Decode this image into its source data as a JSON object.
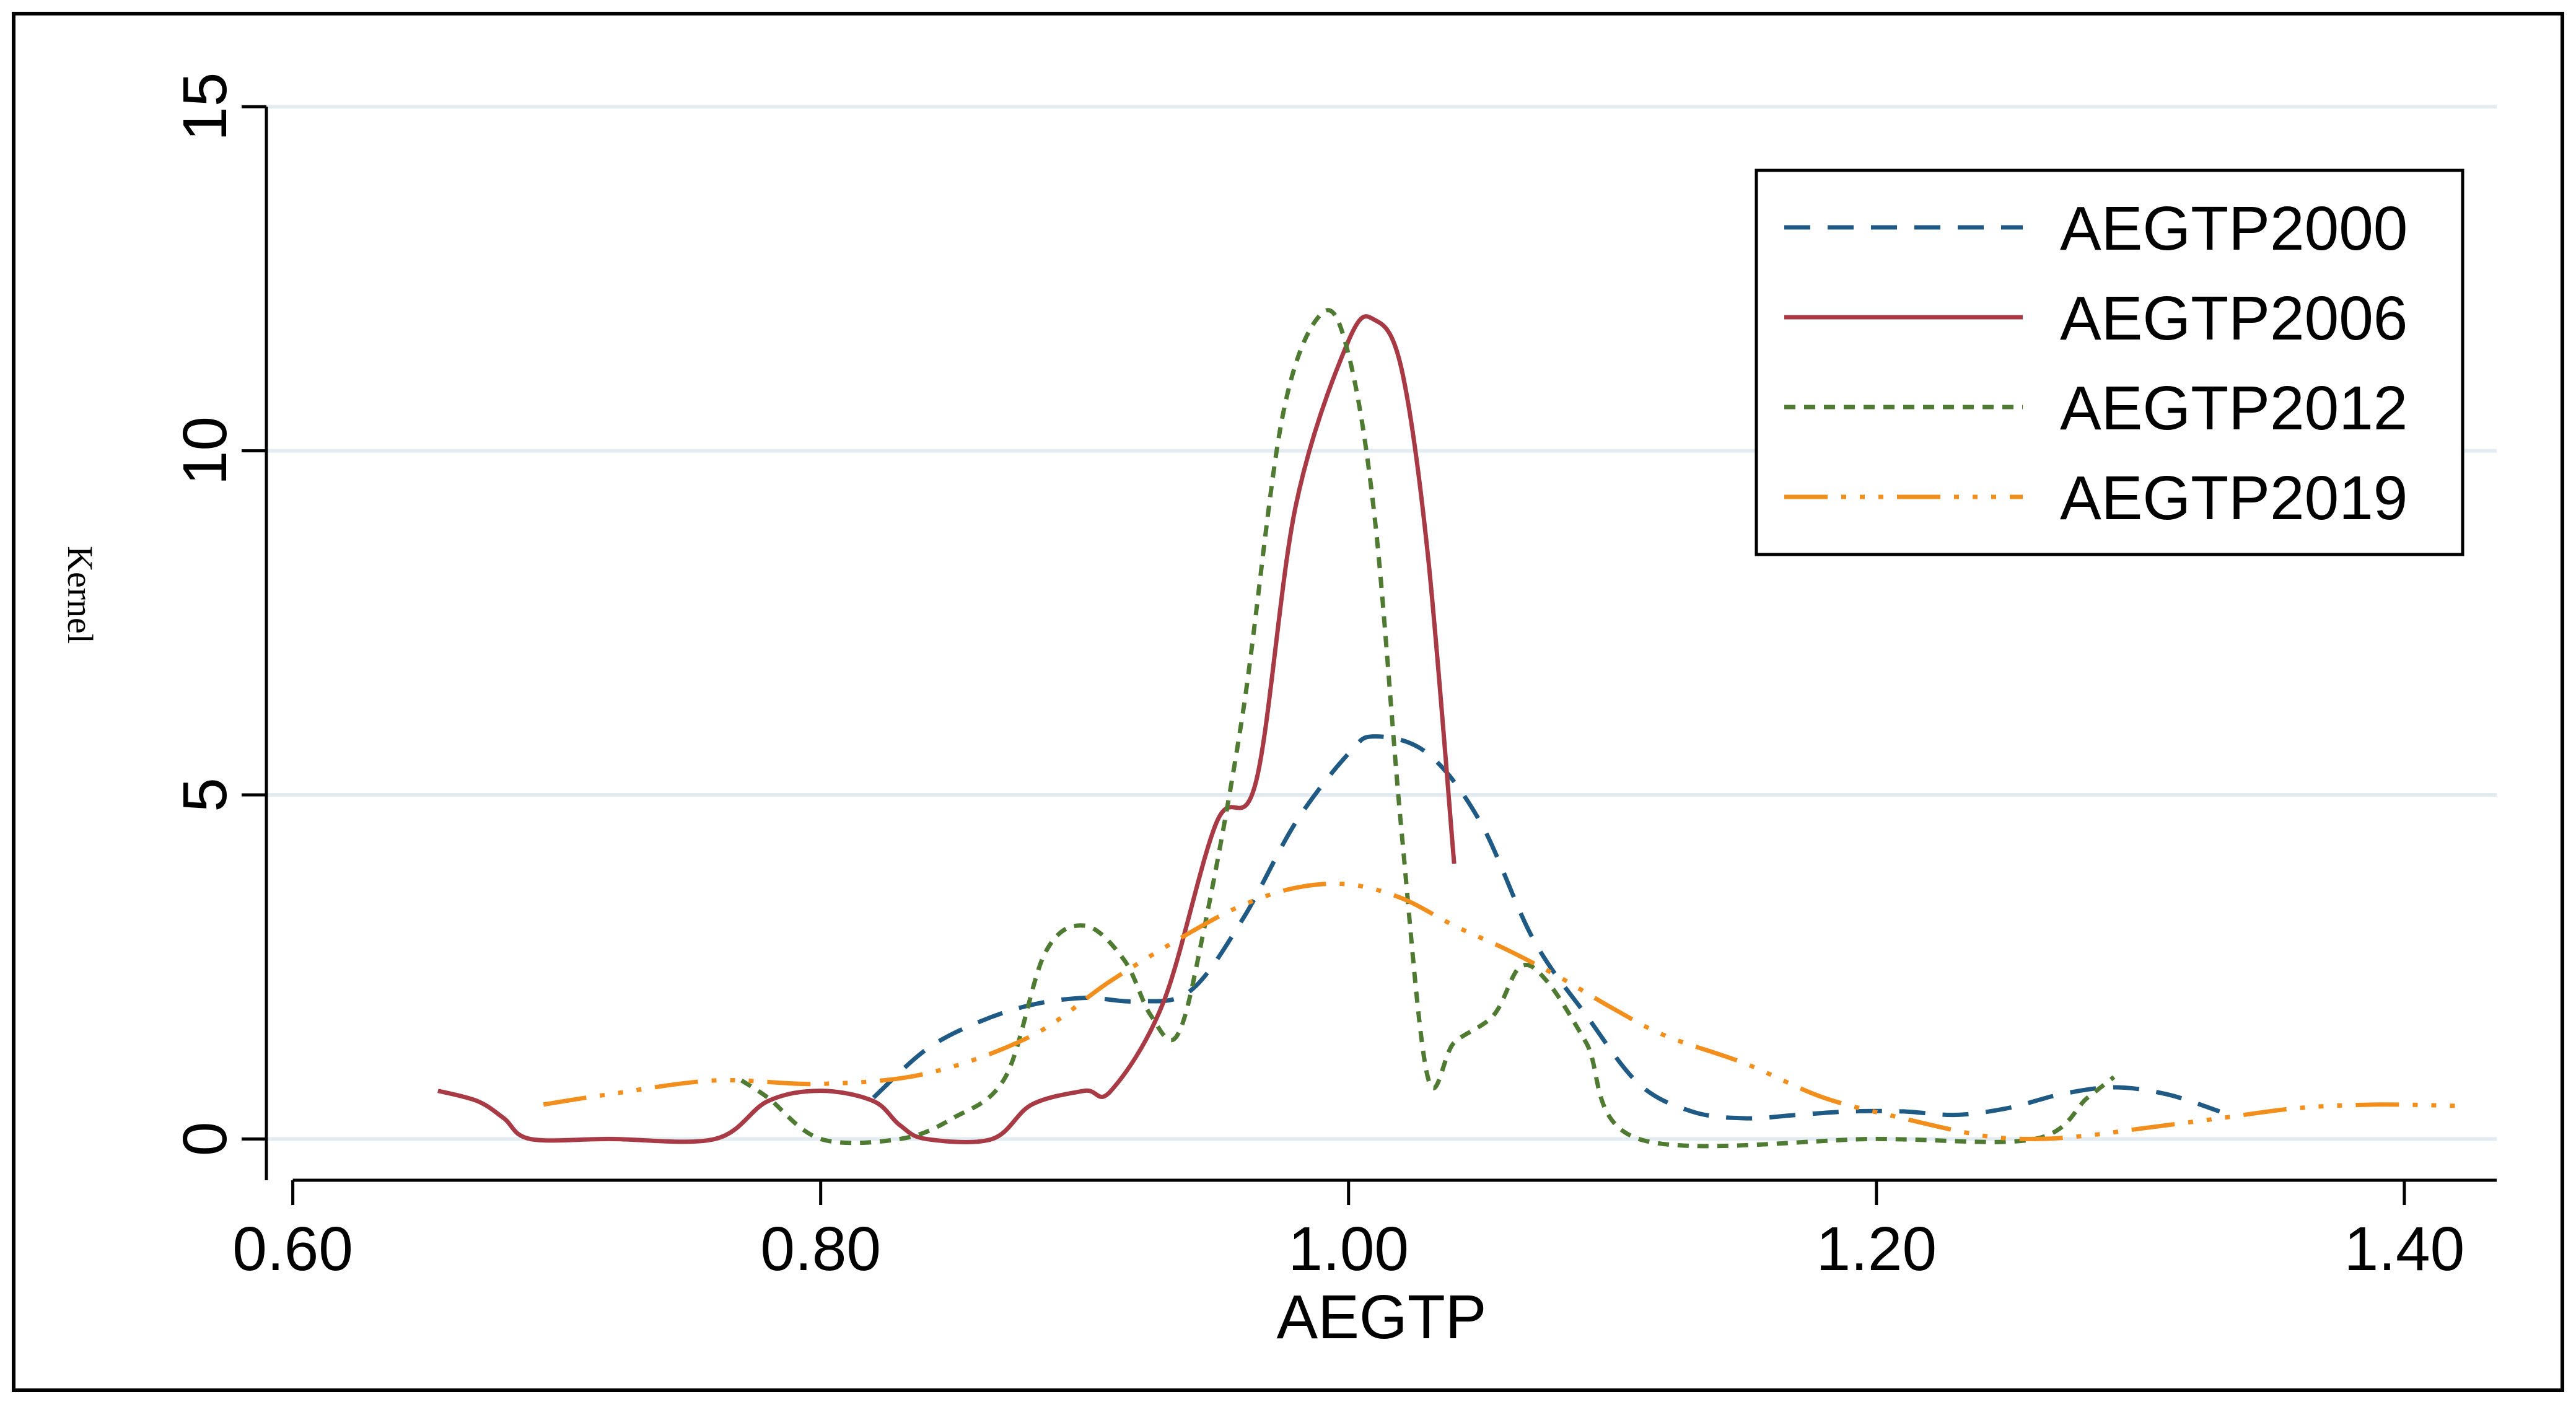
{
  "chart_data": {
    "type": "line",
    "title": "",
    "xlabel": "AEGTP",
    "ylabel": "Kernel",
    "xlim": [
      0.59,
      1.435
    ],
    "ylim": [
      -0.6,
      15.2
    ],
    "x_ticks": [
      0.6,
      0.8,
      1.0,
      1.2,
      1.4
    ],
    "x_tick_labels": [
      "0.60",
      "0.80",
      "1.00",
      "1.20",
      "1.40"
    ],
    "y_ticks": [
      0,
      5,
      10,
      15
    ],
    "y_tick_labels": [
      "0",
      "5",
      "10",
      "15"
    ],
    "grid": "horizontal",
    "legend_position": "top-right",
    "series": [
      {
        "name": "AEGTP2000",
        "color": "#1f5a85",
        "dash": "dash",
        "x": [
          0.82,
          0.84,
          0.86,
          0.88,
          0.9,
          0.92,
          0.94,
          0.96,
          0.98,
          1.0,
          1.01,
          1.03,
          1.05,
          1.07,
          1.09,
          1.11,
          1.13,
          1.15,
          1.17,
          1.19,
          1.21,
          1.23,
          1.25,
          1.27,
          1.29,
          1.31,
          1.33
        ],
        "y": [
          0.6,
          1.3,
          1.7,
          1.95,
          2.05,
          2.0,
          2.15,
          3.2,
          4.6,
          5.6,
          5.85,
          5.6,
          4.6,
          2.9,
          1.8,
          0.8,
          0.4,
          0.3,
          0.35,
          0.4,
          0.4,
          0.35,
          0.45,
          0.65,
          0.75,
          0.65,
          0.4
        ]
      },
      {
        "name": "AEGTP2006",
        "color": "#a83a45",
        "dash": "solid",
        "x": [
          0.655,
          0.67,
          0.68,
          0.69,
          0.72,
          0.76,
          0.78,
          0.8,
          0.82,
          0.83,
          0.84,
          0.865,
          0.88,
          0.9,
          0.91,
          0.93,
          0.95,
          0.965,
          0.98,
          1.0,
          1.01,
          1.02,
          1.03,
          1.04
        ],
        "y": [
          0.7,
          0.55,
          0.3,
          0.0,
          0.0,
          0.0,
          0.55,
          0.7,
          0.55,
          0.2,
          0.0,
          0.0,
          0.5,
          0.7,
          0.7,
          2.0,
          4.6,
          5.2,
          9.2,
          11.6,
          11.9,
          11.2,
          8.5,
          4.0
        ]
      },
      {
        "name": "AEGTP2012",
        "color": "#4f7a31",
        "dash": "dot",
        "x": [
          0.77,
          0.78,
          0.8,
          0.83,
          0.85,
          0.87,
          0.885,
          0.9,
          0.915,
          0.925,
          0.935,
          0.945,
          0.96,
          0.975,
          0.99,
          1.0,
          1.01,
          1.02,
          1.03,
          1.04,
          1.055,
          1.065,
          1.075,
          1.09,
          1.11,
          1.2,
          1.26,
          1.28,
          1.29
        ],
        "y": [
          0.85,
          0.6,
          0.0,
          0.0,
          0.3,
          0.9,
          2.7,
          3.1,
          2.6,
          1.8,
          1.5,
          3.0,
          6.2,
          10.5,
          12.0,
          11.4,
          9.0,
          4.5,
          0.9,
          1.4,
          1.8,
          2.5,
          2.3,
          1.4,
          0.0,
          0.0,
          0.0,
          0.6,
          0.9
        ]
      },
      {
        "name": "AEGTP2019",
        "color": "#f28e1c",
        "dash": "longdash-dot",
        "x": [
          0.695,
          0.72,
          0.76,
          0.8,
          0.84,
          0.88,
          0.91,
          0.94,
          0.96,
          0.98,
          1.0,
          1.02,
          1.04,
          1.06,
          1.08,
          1.1,
          1.12,
          1.15,
          1.18,
          1.21,
          1.24,
          1.26,
          1.28,
          1.3,
          1.33,
          1.36,
          1.39,
          1.42
        ],
        "y": [
          0.5,
          0.65,
          0.85,
          0.8,
          0.95,
          1.5,
          2.3,
          3.0,
          3.4,
          3.65,
          3.7,
          3.5,
          3.1,
          2.75,
          2.35,
          1.9,
          1.5,
          1.1,
          0.6,
          0.3,
          0.05,
          0.0,
          0.05,
          0.15,
          0.3,
          0.45,
          0.5,
          0.48
        ]
      }
    ]
  }
}
